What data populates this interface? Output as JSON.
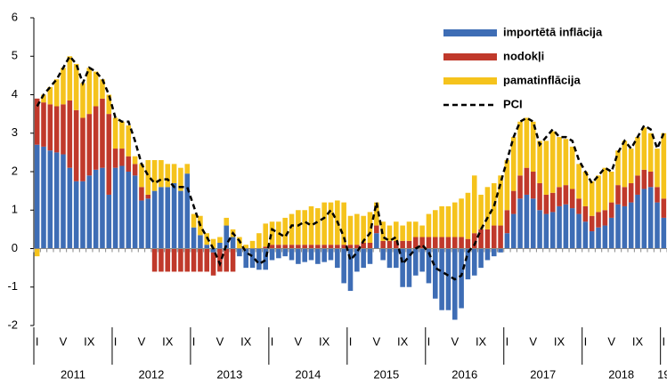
{
  "chart_data": {
    "type": "bar",
    "categories": [
      "I",
      null,
      null,
      null,
      "V",
      null,
      null,
      null,
      "IX",
      null,
      null,
      null,
      "I",
      null,
      null,
      null,
      "V",
      null,
      null,
      null,
      "IX",
      null,
      null,
      null,
      "I",
      null,
      null,
      null,
      "V",
      null,
      null,
      null,
      "IX",
      null,
      null,
      null,
      "I",
      null,
      null,
      null,
      "V",
      null,
      null,
      null,
      "IX",
      null,
      null,
      null,
      "I",
      null,
      null,
      null,
      "V",
      null,
      null,
      null,
      "IX",
      null,
      null,
      null,
      "I",
      null,
      null,
      null,
      "V",
      null,
      null,
      null,
      "IX",
      null,
      null,
      null,
      "I",
      null,
      null,
      null,
      "V",
      null,
      null,
      null,
      "IX",
      null,
      null,
      null,
      "I",
      null,
      null,
      null,
      "V",
      null,
      null,
      null,
      "IX",
      null,
      null,
      null,
      "I"
    ],
    "years": [
      "2011",
      "2012",
      "2013",
      "2014",
      "2015",
      "2016",
      "2017",
      "2018",
      "19"
    ],
    "series": [
      {
        "name": "importētā inflācija",
        "color": "#3e6db5",
        "kind": "bar",
        "values": [
          2.7,
          2.65,
          2.55,
          2.5,
          2.45,
          2.1,
          1.75,
          1.75,
          1.9,
          2.05,
          2.1,
          1.4,
          2.1,
          2.15,
          2.0,
          1.9,
          1.25,
          1.3,
          1.5,
          1.6,
          1.6,
          1.7,
          1.5,
          1.95,
          0.55,
          0.35,
          0.1,
          -0.1,
          0.15,
          0.6,
          0.3,
          -0.2,
          -0.5,
          -0.5,
          -0.55,
          -0.55,
          -0.3,
          -0.25,
          -0.2,
          -0.3,
          -0.4,
          -0.35,
          -0.3,
          -0.4,
          -0.35,
          -0.3,
          -0.5,
          -0.9,
          -1.1,
          -0.6,
          -0.5,
          -0.4,
          0.4,
          -0.3,
          -0.5,
          -0.5,
          -1.0,
          -1.0,
          -0.7,
          -0.6,
          -0.9,
          -1.3,
          -1.6,
          -1.6,
          -1.85,
          -1.55,
          -0.8,
          -0.7,
          -0.5,
          -0.3,
          -0.2,
          -0.1,
          0.4,
          0.9,
          1.3,
          1.4,
          1.3,
          1.0,
          0.9,
          0.95,
          1.1,
          1.15,
          1.05,
          0.9,
          0.7,
          0.45,
          0.55,
          0.6,
          0.8,
          1.15,
          1.1,
          1.2,
          1.4,
          1.55,
          1.6,
          1.2,
          0.8
        ]
      },
      {
        "name": "nodokļi",
        "color": "#c0392b",
        "kind": "bar",
        "values": [
          1.2,
          1.15,
          1.2,
          1.2,
          1.3,
          1.75,
          1.85,
          1.65,
          1.6,
          1.65,
          1.8,
          2.1,
          0.5,
          0.45,
          0.4,
          0.3,
          0.35,
          0.1,
          -0.6,
          -0.6,
          -0.6,
          -0.6,
          -0.6,
          -0.6,
          -0.6,
          -0.6,
          -0.6,
          -0.6,
          -0.6,
          -0.6,
          -0.6,
          0,
          0,
          0,
          0,
          0.05,
          0.1,
          0.1,
          0.1,
          0.1,
          0.1,
          0.1,
          0.1,
          0.1,
          0.1,
          0.1,
          0.1,
          0.1,
          0.1,
          0.1,
          0.15,
          0.15,
          0.2,
          0.2,
          0.2,
          0.2,
          0.2,
          0.2,
          0.3,
          0.3,
          0.3,
          0.3,
          0.3,
          0.3,
          0.3,
          0.3,
          0.25,
          0.4,
          0.5,
          0.5,
          0.6,
          0.6,
          0.6,
          0.6,
          0.6,
          0.7,
          0.7,
          0.7,
          0.5,
          0.5,
          0.5,
          0.5,
          0.5,
          0.4,
          0.4,
          0.4,
          0.4,
          0.4,
          0.4,
          0.5,
          0.5,
          0.5,
          0.5,
          0.5,
          0.4,
          0.4,
          0.5
        ]
      },
      {
        "name": "pamatinflācija",
        "color": "#f5c31c",
        "kind": "bar",
        "values": [
          -0.2,
          0.2,
          0.45,
          0.7,
          0.95,
          1.15,
          1.2,
          0.9,
          1.2,
          0.9,
          0.5,
          0.5,
          0.8,
          0.7,
          0.8,
          0.2,
          0.6,
          0.9,
          0.8,
          0.7,
          0.6,
          0.5,
          0.6,
          0.25,
          0.35,
          0.5,
          0.3,
          0.25,
          0.15,
          0.2,
          0.2,
          0.3,
          0.1,
          0.2,
          0.4,
          0.6,
          0.6,
          0.6,
          0.7,
          0.8,
          0.9,
          0.9,
          1.0,
          0.95,
          1.1,
          1.1,
          1.15,
          1.1,
          0.75,
          0.8,
          0.7,
          0.8,
          0.6,
          0.5,
          0.4,
          0.5,
          0.4,
          0.5,
          0.4,
          0.3,
          0.6,
          0.7,
          0.8,
          0.8,
          0.9,
          1.0,
          1.2,
          1.5,
          0.9,
          1.1,
          1.1,
          1.3,
          1.3,
          1.4,
          1.4,
          1.3,
          1.3,
          1.1,
          1.4,
          1.6,
          1.3,
          1.2,
          1.1,
          0.9,
          0.9,
          0.9,
          0.95,
          1.1,
          0.8,
          0.9,
          1.2,
          0.9,
          1.0,
          1.1,
          1.0,
          1.0,
          1.7
        ]
      },
      {
        "name": "PCI",
        "color": "#000000",
        "kind": "line",
        "dash": true,
        "values": [
          3.7,
          4.0,
          4.2,
          4.4,
          4.7,
          5.0,
          4.8,
          4.3,
          4.7,
          4.6,
          4.4,
          4.0,
          3.4,
          3.3,
          3.3,
          2.8,
          2.2,
          1.9,
          1.7,
          1.8,
          1.8,
          1.6,
          1.6,
          1.6,
          1.1,
          0.6,
          0.3,
          0.0,
          -0.4,
          0.1,
          0.4,
          0.2,
          -0.1,
          -0.2,
          -0.4,
          -0.3,
          0.5,
          0.4,
          0.3,
          0.6,
          0.6,
          0.7,
          0.6,
          0.7,
          0.8,
          1.0,
          0.7,
          0.3,
          -0.3,
          -0.1,
          0.2,
          0.4,
          1.2,
          0.3,
          0.2,
          0.3,
          -0.4,
          -0.2,
          0.0,
          0.1,
          -0.1,
          -0.5,
          -0.6,
          -0.7,
          -0.8,
          -0.7,
          -0.1,
          0.1,
          0.5,
          0.8,
          1.1,
          1.7,
          2.3,
          2.9,
          3.3,
          3.4,
          3.3,
          2.7,
          2.9,
          3.1,
          2.9,
          2.9,
          2.8,
          2.3,
          2.0,
          1.7,
          1.9,
          2.1,
          2.0,
          2.5,
          2.8,
          2.6,
          2.9,
          3.2,
          3.1,
          2.6,
          3.0
        ]
      }
    ],
    "ylim": [
      -2,
      6
    ],
    "yticks": [
      -2,
      -1,
      0,
      1,
      2,
      3,
      4,
      5,
      6
    ],
    "grid": false,
    "legend": "top-right"
  }
}
